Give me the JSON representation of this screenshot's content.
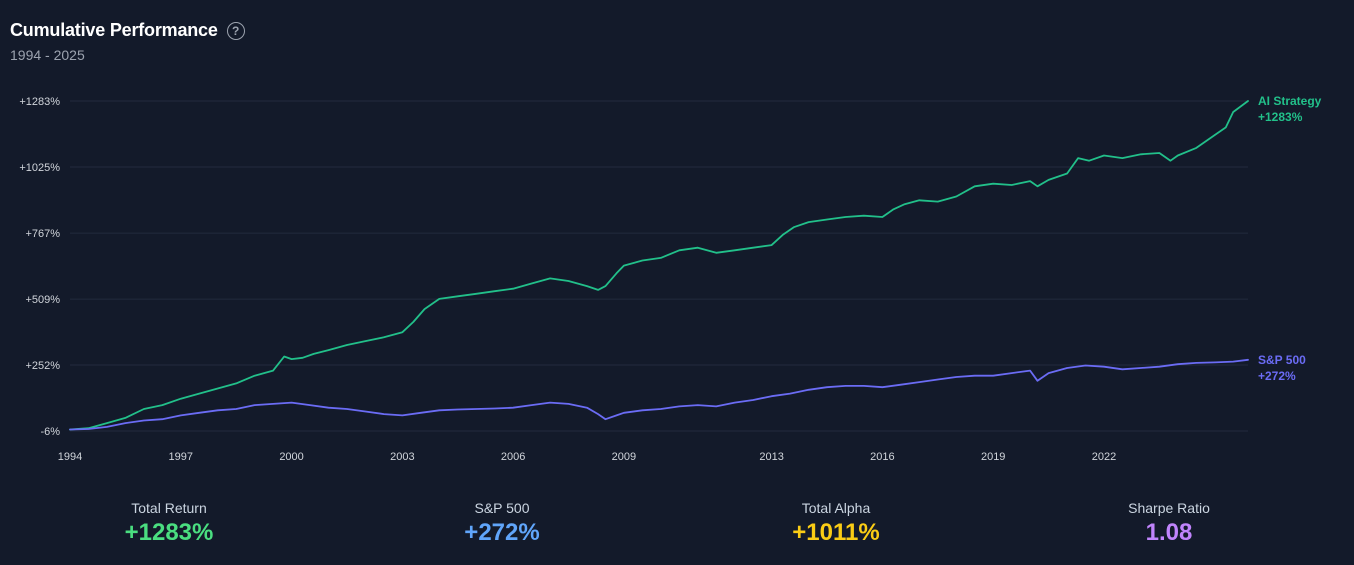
{
  "header": {
    "title": "Cumulative Performance",
    "help_icon": "question-circle-icon",
    "subtitle": "1994 - 2025"
  },
  "chart_data": {
    "type": "line",
    "xlim": [
      1994,
      2025.9
    ],
    "ylim": [
      -6,
      1283
    ],
    "y_ticks": [
      {
        "value": 1283,
        "label": "+1283%"
      },
      {
        "value": 1025,
        "label": "+1025%"
      },
      {
        "value": 767,
        "label": "+767%"
      },
      {
        "value": 509,
        "label": "+509%"
      },
      {
        "value": 252,
        "label": "+252%"
      },
      {
        "value": -6,
        "label": "-6%"
      }
    ],
    "x_ticks": [
      {
        "value": 1994,
        "label": "1994"
      },
      {
        "value": 1997,
        "label": "1997"
      },
      {
        "value": 2000,
        "label": "2000"
      },
      {
        "value": 2003,
        "label": "2003"
      },
      {
        "value": 2006,
        "label": "2006"
      },
      {
        "value": 2009,
        "label": "2009"
      },
      {
        "value": 2013,
        "label": "2013"
      },
      {
        "value": 2016,
        "label": "2016"
      },
      {
        "value": 2019,
        "label": "2019"
      },
      {
        "value": 2022,
        "label": "2022"
      }
    ],
    "grid": true,
    "series": [
      {
        "name": "AI Strategy",
        "end_label": "+1283%",
        "color": "#22c08a",
        "points": [
          [
            1994.0,
            0
          ],
          [
            1994.5,
            5
          ],
          [
            1995.0,
            25
          ],
          [
            1995.5,
            45
          ],
          [
            1996.0,
            80
          ],
          [
            1996.5,
            95
          ],
          [
            1997.0,
            120
          ],
          [
            1997.5,
            140
          ],
          [
            1998.0,
            160
          ],
          [
            1998.5,
            180
          ],
          [
            1999.0,
            210
          ],
          [
            1999.5,
            230
          ],
          [
            1999.8,
            285
          ],
          [
            2000.0,
            275
          ],
          [
            2000.3,
            280
          ],
          [
            2000.6,
            295
          ],
          [
            2001.0,
            310
          ],
          [
            2001.5,
            330
          ],
          [
            2002.0,
            345
          ],
          [
            2002.5,
            360
          ],
          [
            2003.0,
            380
          ],
          [
            2003.3,
            420
          ],
          [
            2003.6,
            470
          ],
          [
            2004.0,
            510
          ],
          [
            2004.5,
            520
          ],
          [
            2005.0,
            530
          ],
          [
            2005.5,
            540
          ],
          [
            2006.0,
            550
          ],
          [
            2006.5,
            570
          ],
          [
            2007.0,
            590
          ],
          [
            2007.5,
            580
          ],
          [
            2008.0,
            560
          ],
          [
            2008.3,
            545
          ],
          [
            2008.5,
            560
          ],
          [
            2008.8,
            610
          ],
          [
            2009.0,
            640
          ],
          [
            2009.5,
            660
          ],
          [
            2010.0,
            670
          ],
          [
            2010.5,
            700
          ],
          [
            2011.0,
            710
          ],
          [
            2011.5,
            690
          ],
          [
            2012.0,
            700
          ],
          [
            2012.5,
            710
          ],
          [
            2013.0,
            720
          ],
          [
            2013.3,
            760
          ],
          [
            2013.6,
            790
          ],
          [
            2014.0,
            810
          ],
          [
            2014.5,
            820
          ],
          [
            2015.0,
            830
          ],
          [
            2015.5,
            835
          ],
          [
            2016.0,
            830
          ],
          [
            2016.3,
            860
          ],
          [
            2016.6,
            880
          ],
          [
            2017.0,
            895
          ],
          [
            2017.5,
            890
          ],
          [
            2018.0,
            910
          ],
          [
            2018.5,
            950
          ],
          [
            2019.0,
            960
          ],
          [
            2019.5,
            955
          ],
          [
            2020.0,
            970
          ],
          [
            2020.2,
            950
          ],
          [
            2020.5,
            975
          ],
          [
            2021.0,
            1000
          ],
          [
            2021.3,
            1060
          ],
          [
            2021.6,
            1050
          ],
          [
            2022.0,
            1070
          ],
          [
            2022.5,
            1060
          ],
          [
            2023.0,
            1075
          ],
          [
            2023.5,
            1080
          ],
          [
            2023.8,
            1050
          ],
          [
            2024.0,
            1070
          ],
          [
            2024.5,
            1100
          ],
          [
            2025.0,
            1150
          ],
          [
            2025.3,
            1180
          ],
          [
            2025.5,
            1240
          ],
          [
            2025.9,
            1283
          ]
        ]
      },
      {
        "name": "S&P 500",
        "end_label": "+272%",
        "color": "#6b6cf5",
        "points": [
          [
            1994.0,
            0
          ],
          [
            1994.5,
            2
          ],
          [
            1995.0,
            10
          ],
          [
            1995.5,
            25
          ],
          [
            1996.0,
            35
          ],
          [
            1996.5,
            40
          ],
          [
            1997.0,
            55
          ],
          [
            1997.5,
            65
          ],
          [
            1998.0,
            75
          ],
          [
            1998.5,
            80
          ],
          [
            1999.0,
            95
          ],
          [
            1999.5,
            100
          ],
          [
            2000.0,
            105
          ],
          [
            2000.5,
            95
          ],
          [
            2001.0,
            85
          ],
          [
            2001.5,
            80
          ],
          [
            2002.0,
            70
          ],
          [
            2002.5,
            60
          ],
          [
            2003.0,
            55
          ],
          [
            2003.5,
            65
          ],
          [
            2004.0,
            75
          ],
          [
            2004.5,
            78
          ],
          [
            2005.0,
            80
          ],
          [
            2005.5,
            82
          ],
          [
            2006.0,
            85
          ],
          [
            2006.5,
            95
          ],
          [
            2007.0,
            105
          ],
          [
            2007.5,
            100
          ],
          [
            2008.0,
            85
          ],
          [
            2008.3,
            60
          ],
          [
            2008.5,
            40
          ],
          [
            2008.8,
            55
          ],
          [
            2009.0,
            65
          ],
          [
            2009.5,
            75
          ],
          [
            2010.0,
            80
          ],
          [
            2010.5,
            90
          ],
          [
            2011.0,
            95
          ],
          [
            2011.5,
            90
          ],
          [
            2012.0,
            105
          ],
          [
            2012.5,
            115
          ],
          [
            2013.0,
            130
          ],
          [
            2013.5,
            140
          ],
          [
            2014.0,
            155
          ],
          [
            2014.5,
            165
          ],
          [
            2015.0,
            170
          ],
          [
            2015.5,
            170
          ],
          [
            2016.0,
            165
          ],
          [
            2016.5,
            175
          ],
          [
            2017.0,
            185
          ],
          [
            2017.5,
            195
          ],
          [
            2018.0,
            205
          ],
          [
            2018.5,
            210
          ],
          [
            2019.0,
            210
          ],
          [
            2019.5,
            220
          ],
          [
            2020.0,
            230
          ],
          [
            2020.2,
            190
          ],
          [
            2020.5,
            220
          ],
          [
            2021.0,
            240
          ],
          [
            2021.5,
            250
          ],
          [
            2022.0,
            245
          ],
          [
            2022.5,
            235
          ],
          [
            2023.0,
            240
          ],
          [
            2023.5,
            245
          ],
          [
            2024.0,
            255
          ],
          [
            2024.5,
            260
          ],
          [
            2025.0,
            262
          ],
          [
            2025.5,
            265
          ],
          [
            2025.9,
            272
          ]
        ]
      }
    ]
  },
  "stats": [
    {
      "label": "Total Return",
      "value": "+1283%",
      "color": "#4ade80"
    },
    {
      "label": "S&P 500",
      "value": "+272%",
      "color": "#60a5fa"
    },
    {
      "label": "Total Alpha",
      "value": "+1011%",
      "color": "#facc15"
    },
    {
      "label": "Sharpe Ratio",
      "value": "1.08",
      "color": "#c084fc"
    }
  ]
}
